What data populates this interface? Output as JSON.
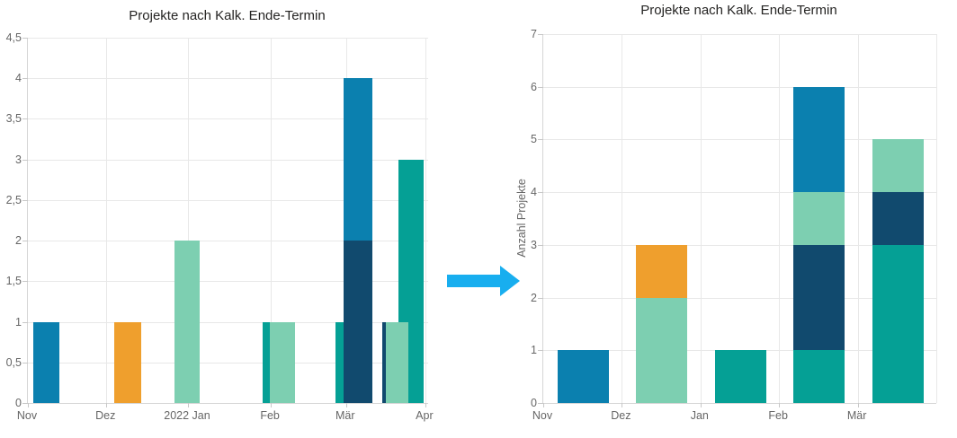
{
  "colors": {
    "blue": "#0B80AF",
    "orange": "#EF9F2D",
    "mint": "#7DCFB1",
    "teal": "#05A095",
    "navy": "#114A6E",
    "arrow": "#18AEEF",
    "grid": "#E8E8E8",
    "axis_line": "#D6D6D6",
    "tick_text": "#666666",
    "title_text": "#252423"
  },
  "chart_data": [
    {
      "type": "bar",
      "subtype": "overlapping-columns-continuous-date-axis",
      "title": "Projekte nach Kalk. Ende-Termin",
      "xlabel": "",
      "ylabel": "",
      "ylim": [
        0,
        4.5
      ],
      "grid": true,
      "legend": "none",
      "y_tick_labels": [
        "0",
        "0,5",
        "1",
        "1,5",
        "2",
        "2,5",
        "3",
        "3,5",
        "4",
        "4,5"
      ],
      "x_ticks": [
        {
          "label": "Nov",
          "pos_pct": 0
        },
        {
          "label": "Dez",
          "pos_pct": 19.6
        },
        {
          "label": "2022 Jan",
          "pos_pct": 40.0
        },
        {
          "label": "Feb",
          "pos_pct": 60.7
        },
        {
          "label": "Mär",
          "pos_pct": 79.5
        },
        {
          "label": "Apr",
          "pos_pct": 99.3
        }
      ],
      "bars": [
        {
          "series": "blue",
          "month": "Nov",
          "value": 1,
          "left_pct": 1.35,
          "width_pct": 6.5
        },
        {
          "series": "orange",
          "month": "Dez",
          "value": 1,
          "left_pct": 21.6,
          "width_pct": 6.7
        },
        {
          "series": "mint",
          "month": "2022 Jan",
          "value": 2,
          "left_pct": 36.6,
          "width_pct": 6.3
        },
        {
          "series": "teal",
          "month": "Feb",
          "value": 1,
          "left_pct": 58.65,
          "width_pct": 1.8
        },
        {
          "series": "mint",
          "month": "Feb",
          "value": 1,
          "left_pct": 60.45,
          "width_pct": 6.3
        },
        {
          "series": "teal",
          "month": "Mär",
          "value": 1,
          "left_pct": 76.85,
          "width_pct": 2.0
        },
        {
          "series": "blue",
          "month": "Mär",
          "value": 4,
          "left_pct": 78.9,
          "width_pct": 7.2
        },
        {
          "series": "navy",
          "month": "Mär",
          "value": 2,
          "left_pct": 78.9,
          "width_pct": 7.2
        },
        {
          "series": "navy",
          "month": "Mär",
          "value": 1,
          "left_pct": 88.55,
          "width_pct": 0.9
        },
        {
          "series": "teal",
          "month": "Mär",
          "value": 3,
          "left_pct": 92.6,
          "width_pct": 6.3
        },
        {
          "series": "mint",
          "month": "Mär",
          "value": 1,
          "left_pct": 89.45,
          "width_pct": 5.6
        }
      ]
    },
    {
      "type": "bar",
      "subtype": "stacked-columns",
      "title": "Projekte nach Kalk. Ende-Termin",
      "xlabel": "",
      "ylabel": "Anzahl Projekte",
      "ylim": [
        0,
        7
      ],
      "grid": true,
      "legend": "none",
      "y_tick_labels": [
        "0",
        "1",
        "2",
        "3",
        "4",
        "5",
        "6",
        "7"
      ],
      "categories": [
        "Nov",
        "Dez",
        "Jan",
        "Feb",
        "Mär"
      ],
      "stacks": [
        [
          {
            "series": "blue",
            "value": 1
          }
        ],
        [
          {
            "series": "mint",
            "value": 2
          },
          {
            "series": "orange",
            "value": 1
          }
        ],
        [
          {
            "series": "teal",
            "value": 1
          }
        ],
        [
          {
            "series": "teal",
            "value": 1
          },
          {
            "series": "navy",
            "value": 2
          },
          {
            "series": "mint",
            "value": 1
          },
          {
            "series": "blue",
            "value": 2
          }
        ],
        [
          {
            "series": "teal",
            "value": 3
          },
          {
            "series": "navy",
            "value": 1
          },
          {
            "series": "mint",
            "value": 1
          }
        ]
      ],
      "totals": [
        1,
        3,
        1,
        6,
        5
      ],
      "bar_left_offset_pct": 3.66,
      "bar_width_pct": 13.04
    }
  ]
}
